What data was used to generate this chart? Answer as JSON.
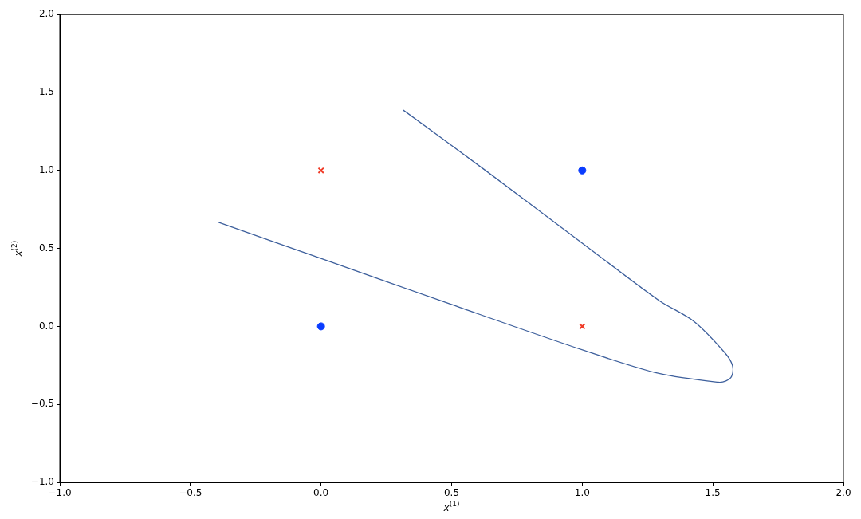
{
  "chart_data": {
    "type": "scatter",
    "xlabel": "x$^{(1)}$",
    "ylabel": "x$^{(2)}$",
    "xlim": [
      -1,
      2
    ],
    "ylim": [
      -1,
      2
    ],
    "xticks": [
      {
        "value": -1,
        "label": "−1.0"
      },
      {
        "value": -0.5,
        "label": "−0.5"
      },
      {
        "value": 0,
        "label": "0.0"
      },
      {
        "value": 0.5,
        "label": "0.5"
      },
      {
        "value": 1,
        "label": "1.0"
      },
      {
        "value": 1.5,
        "label": "1.5"
      },
      {
        "value": 2,
        "label": "2.0"
      }
    ],
    "yticks": [
      {
        "value": -1,
        "label": "−1.0"
      },
      {
        "value": -0.5,
        "label": "−0.5"
      },
      {
        "value": 0,
        "label": "0.0"
      },
      {
        "value": 0.5,
        "label": "0.5"
      },
      {
        "value": 1,
        "label": "1.0"
      },
      {
        "value": 1.5,
        "label": "1.5"
      },
      {
        "value": 2,
        "label": "2.0"
      }
    ],
    "grid": false,
    "legend": false,
    "series": [
      {
        "marker": "circle",
        "color": "#0a3cff",
        "x": [
          0,
          1
        ],
        "values": [
          0,
          1
        ]
      },
      {
        "marker": "cross",
        "color": "#f03c28",
        "x": [
          0,
          1
        ],
        "values": [
          1,
          0
        ]
      },
      {
        "type": "line",
        "marker": "none",
        "color": "#3d5f9c",
        "x": [
          0.315,
          0.629,
          1.008,
          1.294,
          1.427,
          1.546,
          1.575,
          1.572,
          1.55,
          1.52,
          1.294,
          1.008,
          0.495,
          0.004,
          -0.392
        ],
        "values": [
          1.387,
          1.001,
          0.524,
          0.166,
          0.033,
          -0.169,
          -0.25,
          -0.32,
          -0.35,
          -0.358,
          -0.302,
          -0.155,
          0.143,
          0.433,
          0.667
        ]
      }
    ]
  }
}
